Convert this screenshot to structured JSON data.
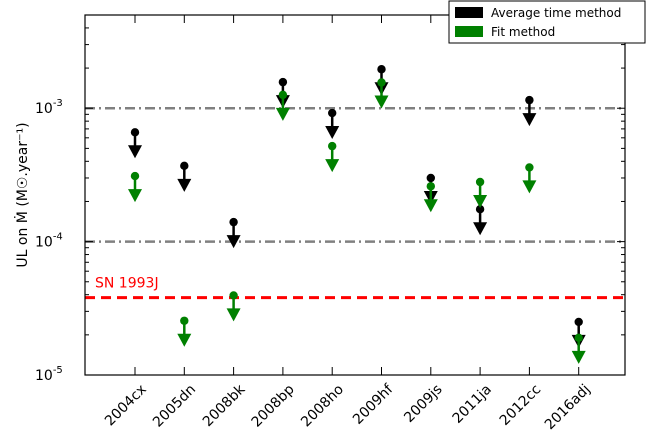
{
  "chart_data": {
    "type": "scatter",
    "title": "",
    "xlabel": "",
    "ylabel": "UL on Ṁ (M☉.year⁻¹)",
    "yscale": "log",
    "ylim": [
      1e-05,
      0.005
    ],
    "categories": [
      "2004cx",
      "2005dn",
      "2008bk",
      "2008bp",
      "2008ho",
      "2009hf",
      "2009js",
      "2011ja",
      "2012cc",
      "2016adj"
    ],
    "yticks": [
      {
        "value": 1e-05,
        "label_base": "10",
        "label_exp": "-5"
      },
      {
        "value": 0.0001,
        "label_base": "10",
        "label_exp": "-4"
      },
      {
        "value": 0.001,
        "label_base": "10",
        "label_exp": "-3"
      }
    ],
    "series": [
      {
        "name": "Average time method",
        "color": "#000000",
        "marker": "upper-limit-arrow",
        "values": [
          0.00066,
          0.00037,
          0.00014,
          0.00157,
          0.00092,
          0.00196,
          0.0003,
          0.000175,
          0.00115,
          2.5e-05
        ]
      },
      {
        "name": "Fit method",
        "color": "#008000",
        "marker": "upper-limit-arrow",
        "values": [
          0.00031,
          2.55e-05,
          3.95e-05,
          0.00126,
          0.00052,
          0.00156,
          0.00026,
          0.00028,
          0.00036,
          1.9e-05
        ]
      }
    ],
    "reference_lines": [
      {
        "value": 0.001,
        "style": "dash-dot",
        "color": "#808080"
      },
      {
        "value": 0.0001,
        "style": "dash-dot",
        "color": "#808080"
      },
      {
        "value": 3.8e-05,
        "style": "dashed",
        "color": "#ff0000",
        "label": "SN 1993J"
      }
    ],
    "legend": {
      "placement": "top-right"
    },
    "grid": false
  }
}
